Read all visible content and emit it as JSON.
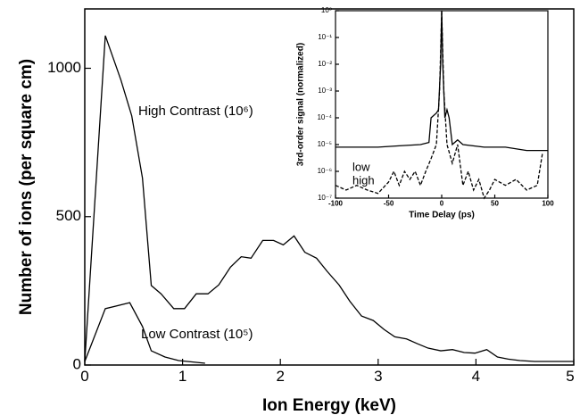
{
  "chart_data": [
    {
      "type": "line",
      "xlabel": "Ion Energy (keV)",
      "ylabel": "Number of ions (per square cm)",
      "xlim": [
        0,
        5
      ],
      "ylim": [
        0,
        1200
      ],
      "xticks": [
        0,
        1,
        2,
        3,
        4,
        5
      ],
      "yticks": [
        0,
        500,
        1000
      ],
      "series": [
        {
          "name": "High Contrast (10⁶)",
          "color": "#000000",
          "style": "solid",
          "x": [
            0,
            0.21,
            0.37,
            0.48,
            0.59,
            0.68,
            0.78,
            0.91,
            1.02,
            1.14,
            1.26,
            1.37,
            1.49,
            1.6,
            1.7,
            1.82,
            1.93,
            2.03,
            2.14,
            2.25,
            2.37,
            2.48,
            2.6,
            2.71,
            2.83,
            2.95,
            3.06,
            3.17,
            3.29,
            3.4,
            3.51,
            3.64,
            3.76,
            3.88,
            3.99,
            4.11,
            4.22,
            4.33,
            4.45,
            4.6,
            5
          ],
          "values": [
            12,
            1110,
            960,
            840,
            630,
            268,
            240,
            190,
            190,
            240,
            240,
            270,
            330,
            365,
            360,
            420,
            420,
            405,
            435,
            380,
            360,
            315,
            270,
            215,
            165,
            150,
            120,
            95,
            88,
            72,
            57,
            48,
            52,
            42,
            40,
            52,
            27,
            20,
            15,
            12,
            12
          ]
        },
        {
          "name": "Low Contrast (10⁵)",
          "color": "#000000",
          "style": "solid",
          "x": [
            0,
            0.21,
            0.46,
            0.59,
            0.68,
            0.82,
            0.96,
            1.23
          ],
          "values": [
            12,
            190,
            210,
            130,
            48,
            27,
            15,
            6
          ]
        }
      ]
    },
    {
      "type": "line",
      "xlabel": "Time Delay (ps)",
      "ylabel": "3rd-order  signal  (normalized)",
      "xlim": [
        -100,
        100
      ],
      "ylim": [
        1e-07,
        1
      ],
      "log_y": true,
      "xticks": [
        -100,
        -50,
        0,
        50,
        100
      ],
      "yticks": [
        {
          "value": 1e-07,
          "label": "10⁻⁷"
        },
        {
          "value": 1e-06,
          "label": "10⁻⁶"
        },
        {
          "value": 1e-05,
          "label": "10⁻⁵"
        },
        {
          "value": 0.0001,
          "label": "10⁻⁴"
        },
        {
          "value": 0.001,
          "label": "10⁻³"
        },
        {
          "value": 0.01,
          "label": "10⁻²"
        },
        {
          "value": 0.1,
          "label": "10⁻¹"
        },
        {
          "value": 1,
          "label": "10⁰"
        }
      ],
      "series": [
        {
          "name": "low",
          "color": "#000000",
          "style": "solid",
          "x": [
            -100,
            -80,
            -60,
            -40,
            -20,
            -12,
            -10,
            -5,
            -3,
            -1,
            0,
            1,
            3,
            5,
            7,
            10,
            15,
            20,
            40,
            60,
            80,
            100
          ],
          "values": [
            8e-06,
            8e-06,
            8e-06,
            9e-06,
            1e-05,
            1.2e-05,
            0.0001,
            0.00015,
            0.0002,
            0.01,
            1,
            0.01,
            0.0001,
            0.0002,
            0.0001,
            1e-05,
            1.5e-05,
            1e-05,
            8e-06,
            8e-06,
            6e-06,
            6e-06
          ]
        },
        {
          "name": "high",
          "color": "#000000",
          "style": "dashed",
          "x": [
            -100,
            -90,
            -80,
            -70,
            -60,
            -50,
            -45,
            -40,
            -35,
            -30,
            -25,
            -20,
            -15,
            -10,
            -5,
            -2,
            0,
            2,
            5,
            10,
            15,
            20,
            25,
            30,
            35,
            40,
            45,
            50,
            60,
            70,
            80,
            90,
            95
          ],
          "values": [
            3e-07,
            2e-07,
            3e-07,
            2e-07,
            1.5e-07,
            4e-07,
            1e-06,
            3e-07,
            1e-06,
            5e-07,
            1e-06,
            3e-07,
            1e-06,
            3e-06,
            1e-05,
            0.001,
            1,
            0.001,
            1e-05,
            2e-06,
            1e-05,
            3e-07,
            1e-06,
            2e-07,
            5e-07,
            1e-07,
            2e-07,
            5e-07,
            3e-07,
            5e-07,
            2e-07,
            3e-07,
            5e-06
          ]
        }
      ]
    }
  ]
}
